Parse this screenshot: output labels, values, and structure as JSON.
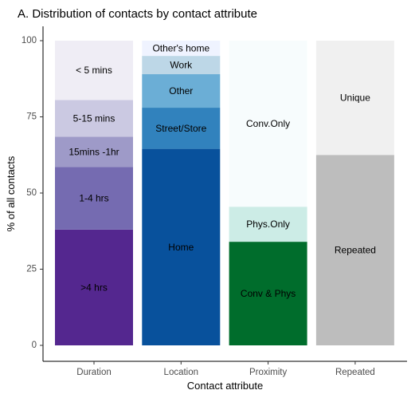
{
  "chart_data": {
    "type": "bar",
    "stacked": true,
    "title": "A. Distribution of contacts by contact attribute",
    "xlabel": "Contact attribute",
    "ylabel": "% of all contacts",
    "ylim": [
      0,
      100
    ],
    "yticks": [
      0,
      25,
      50,
      75,
      100
    ],
    "grid": false,
    "legend": "none",
    "categories": [
      "Duration",
      "Location",
      "Proximity",
      "Repeated"
    ],
    "bars": [
      {
        "category": "Duration",
        "segments": [
          {
            "label": ">4 hrs",
            "value": 38,
            "color": "#54278f"
          },
          {
            "label": "1-4 hrs",
            "value": 20.5,
            "color": "#756bb1"
          },
          {
            "label": "15mins -1hr",
            "value": 10,
            "color": "#9e9ac8"
          },
          {
            "label": "5-15 mins",
            "value": 12,
            "color": "#cbc9e2"
          },
          {
            "label": "< 5 mins",
            "value": 19.5,
            "color": "#efedf5"
          }
        ]
      },
      {
        "category": "Location",
        "segments": [
          {
            "label": "Home",
            "value": 64.5,
            "color": "#08519c"
          },
          {
            "label": "Street/Store",
            "value": 13.5,
            "color": "#3182bd"
          },
          {
            "label": "Other",
            "value": 11,
            "color": "#6baed6"
          },
          {
            "label": "Work",
            "value": 6,
            "color": "#bdd7e7"
          },
          {
            "label": "Other's home",
            "value": 5,
            "color": "#eff3ff"
          }
        ]
      },
      {
        "category": "Proximity",
        "segments": [
          {
            "label": "Conv & Phys",
            "value": 34,
            "color": "#006d2c"
          },
          {
            "label": "Phys.Only",
            "value": 11.5,
            "color": "#ccece6"
          },
          {
            "label": "Conv.Only",
            "value": 54.5,
            "color": "#f7fcfd"
          }
        ]
      },
      {
        "category": "Repeated",
        "segments": [
          {
            "label": "Repeated",
            "value": 62.5,
            "color": "#bdbdbd"
          },
          {
            "label": "Unique",
            "value": 37.5,
            "color": "#f0f0f0"
          }
        ]
      }
    ]
  }
}
